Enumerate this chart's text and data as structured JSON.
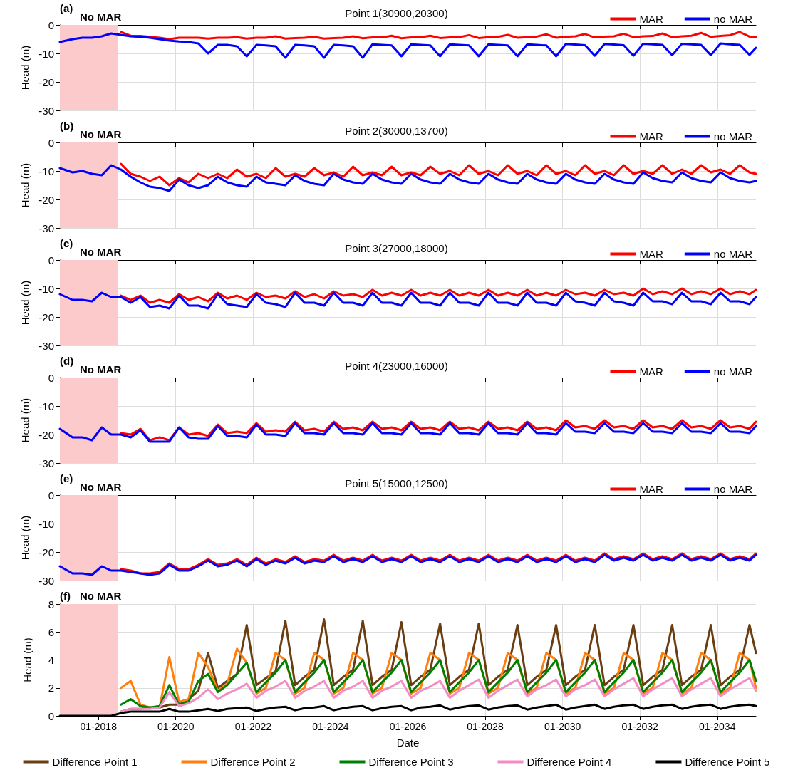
{
  "chart_data": [
    {
      "type": "line",
      "title": "Point 1(30900,20300)",
      "ylabel": "Head (m)",
      "annotations": [
        "(a)"
      ],
      "grid": true,
      "legend": "top right",
      "tick_labels": "y",
      "marker": "none",
      "xlim": [
        "2017-01",
        "2035-01"
      ],
      "xticks": [
        {
          "value": "2018-01",
          "label": null
        },
        {
          "value": "2020-01",
          "label": null
        },
        {
          "value": "2022-01",
          "label": null
        },
        {
          "value": "2024-01",
          "label": null
        },
        {
          "value": "2026-01",
          "label": null
        },
        {
          "value": "2028-01",
          "label": null
        },
        {
          "value": "2030-01",
          "label": null
        },
        {
          "value": "2032-01",
          "label": null
        },
        {
          "value": "2034-01",
          "label": null
        }
      ],
      "ylim": [
        -30,
        0
      ],
      "yticks": [
        -30,
        -20,
        -10,
        0
      ],
      "bands": [
        {
          "axis": "x",
          "from": "2017-01",
          "to": "2018-07",
          "label": "No MAR",
          "color": "#fccaca"
        }
      ],
      "x": [
        "2017-01",
        "2017-05",
        "2017-08",
        "2017-11",
        "2018-02",
        "2018-05",
        "2018-08",
        "2018-11",
        "2019-02",
        "2019-05",
        "2019-08",
        "2019-11",
        "2020-02",
        "2020-05",
        "2020-08",
        "2020-11",
        "2021-02",
        "2021-05",
        "2021-08",
        "2021-11",
        "2022-02",
        "2022-05",
        "2022-08",
        "2022-11",
        "2023-02",
        "2023-05",
        "2023-08",
        "2023-11",
        "2024-02",
        "2024-05",
        "2024-08",
        "2024-11",
        "2025-02",
        "2025-05",
        "2025-08",
        "2025-11",
        "2026-02",
        "2026-05",
        "2026-08",
        "2026-11",
        "2027-02",
        "2027-05",
        "2027-08",
        "2027-11",
        "2028-02",
        "2028-05",
        "2028-08",
        "2028-11",
        "2029-02",
        "2029-05",
        "2029-08",
        "2029-11",
        "2030-02",
        "2030-05",
        "2030-08",
        "2030-11",
        "2031-02",
        "2031-05",
        "2031-08",
        "2031-11",
        "2032-02",
        "2032-05",
        "2032-08",
        "2032-11",
        "2033-02",
        "2033-05",
        "2033-08",
        "2033-11",
        "2034-02",
        "2034-05",
        "2034-08",
        "2034-11",
        "2035-01"
      ],
      "series": [
        {
          "name": "MAR",
          "color": "#ff0000",
          "values": [
            null,
            null,
            null,
            null,
            null,
            null,
            -2.5,
            -3.8,
            -3.9,
            -4.2,
            -4.5,
            -5,
            -4.5,
            -4.5,
            -4.5,
            -4.8,
            -4.5,
            -4.5,
            -4.3,
            -4.8,
            -4.5,
            -4.5,
            -4,
            -4.8,
            -4.6,
            -4.5,
            -4.2,
            -4.8,
            -4.6,
            -4.5,
            -4,
            -4.7,
            -4.4,
            -4.4,
            -3.8,
            -4.7,
            -4.4,
            -4.3,
            -3.8,
            -4.6,
            -4.4,
            -4.3,
            -3.6,
            -4.6,
            -4.3,
            -4.2,
            -3.5,
            -4.5,
            -4.3,
            -4.1,
            -3.3,
            -4.5,
            -4.2,
            -4,
            -3.2,
            -4.4,
            -4.1,
            -4,
            -3.1,
            -4.3,
            -4,
            -3.9,
            -3,
            -4.3,
            -4,
            -3.8,
            -2.8,
            -4.2,
            -3.9,
            -3.6,
            -2.5,
            -4.1,
            -4.3
          ]
        },
        {
          "name": "no MAR",
          "color": "#0000ff",
          "values": [
            -6,
            -5,
            -4.5,
            -4.5,
            -4,
            -3,
            -3.5,
            -4,
            -4.2,
            -4.5,
            -5,
            -5.5,
            -5.8,
            -6,
            -6.5,
            -10,
            -7,
            -7,
            -7.5,
            -11,
            -7,
            -7.2,
            -7.5,
            -11.5,
            -7,
            -7.2,
            -7.5,
            -11.5,
            -7,
            -7.2,
            -7.5,
            -11.5,
            -6.8,
            -7,
            -7.2,
            -11,
            -6.8,
            -7,
            -7.2,
            -11,
            -6.8,
            -7,
            -7.2,
            -11,
            -6.8,
            -7,
            -7.2,
            -11,
            -6.8,
            -7,
            -7.2,
            -11,
            -6.7,
            -6.9,
            -7.1,
            -10.8,
            -6.7,
            -6.9,
            -7.1,
            -10.8,
            -6.6,
            -6.8,
            -7,
            -10.6,
            -6.6,
            -6.8,
            -7,
            -10.6,
            -6.5,
            -6.8,
            -7,
            -10.5,
            -8
          ]
        }
      ]
    },
    {
      "type": "line",
      "title": "Point 2(30000,13700)",
      "ylabel": "Head (m)",
      "annotations": [
        "(b)"
      ],
      "grid": true,
      "legend": "top right",
      "tick_labels": "y",
      "marker": "none",
      "xlim": [
        "2017-01",
        "2035-01"
      ],
      "xticks": [
        {
          "value": "2018-01",
          "label": null
        },
        {
          "value": "2020-01",
          "label": null
        },
        {
          "value": "2022-01",
          "label": null
        },
        {
          "value": "2024-01",
          "label": null
        },
        {
          "value": "2026-01",
          "label": null
        },
        {
          "value": "2028-01",
          "label": null
        },
        {
          "value": "2030-01",
          "label": null
        },
        {
          "value": "2032-01",
          "label": null
        },
        {
          "value": "2034-01",
          "label": null
        }
      ],
      "ylim": [
        -30,
        0
      ],
      "yticks": [
        -30,
        -20,
        -10,
        0
      ],
      "bands": [
        {
          "axis": "x",
          "from": "2017-01",
          "to": "2018-07",
          "label": "No MAR",
          "color": "#fccaca"
        }
      ],
      "x": [
        "2017-01",
        "2017-05",
        "2017-08",
        "2017-11",
        "2018-02",
        "2018-05",
        "2018-08",
        "2018-11",
        "2019-02",
        "2019-05",
        "2019-08",
        "2019-11",
        "2020-02",
        "2020-05",
        "2020-08",
        "2020-11",
        "2021-02",
        "2021-05",
        "2021-08",
        "2021-11",
        "2022-02",
        "2022-05",
        "2022-08",
        "2022-11",
        "2023-02",
        "2023-05",
        "2023-08",
        "2023-11",
        "2024-02",
        "2024-05",
        "2024-08",
        "2024-11",
        "2025-02",
        "2025-05",
        "2025-08",
        "2025-11",
        "2026-02",
        "2026-05",
        "2026-08",
        "2026-11",
        "2027-02",
        "2027-05",
        "2027-08",
        "2027-11",
        "2028-02",
        "2028-05",
        "2028-08",
        "2028-11",
        "2029-02",
        "2029-05",
        "2029-08",
        "2029-11",
        "2030-02",
        "2030-05",
        "2030-08",
        "2030-11",
        "2031-02",
        "2031-05",
        "2031-08",
        "2031-11",
        "2032-02",
        "2032-05",
        "2032-08",
        "2032-11",
        "2033-02",
        "2033-05",
        "2033-08",
        "2033-11",
        "2034-02",
        "2034-05",
        "2034-08",
        "2034-11",
        "2035-01"
      ],
      "series": [
        {
          "name": "MAR",
          "color": "#ff0000",
          "values": [
            null,
            null,
            null,
            null,
            null,
            null,
            -7.5,
            -11,
            -12,
            -13.5,
            -12,
            -15,
            -12.5,
            -14,
            -11,
            -12.5,
            -11,
            -12.5,
            -9.5,
            -12,
            -11,
            -12.5,
            -9,
            -12,
            -11,
            -12,
            -9,
            -11.5,
            -10.5,
            -12,
            -8.5,
            -11.5,
            -10.5,
            -11.5,
            -8.5,
            -11.5,
            -10.5,
            -11.5,
            -8.5,
            -11,
            -10,
            -11.5,
            -8,
            -11,
            -10,
            -11.5,
            -8,
            -11,
            -10,
            -11.5,
            -8,
            -11,
            -10,
            -11.5,
            -8,
            -11,
            -10,
            -11.5,
            -8,
            -11,
            -10,
            -11,
            -8,
            -11,
            -9.5,
            -11,
            -8,
            -10.5,
            -9.5,
            -11,
            -8,
            -10.5,
            -11
          ]
        },
        {
          "name": "no MAR",
          "color": "#0000ff",
          "values": [
            -9,
            -10.5,
            -10,
            -11,
            -11.5,
            -8,
            -9.5,
            -12,
            -14,
            -15.5,
            -16,
            -17,
            -13,
            -15,
            -16,
            -15,
            -12,
            -14,
            -15,
            -15.5,
            -12,
            -14,
            -14.5,
            -15,
            -11.5,
            -13.5,
            -14.5,
            -15,
            -11,
            -13,
            -14,
            -14.5,
            -11,
            -13,
            -14,
            -14.5,
            -11,
            -13,
            -14,
            -14.5,
            -11,
            -13,
            -14,
            -14.5,
            -11,
            -13,
            -14,
            -14.5,
            -11,
            -13,
            -14,
            -14.5,
            -11,
            -13,
            -14,
            -14.5,
            -11,
            -13,
            -14,
            -14.5,
            -10.5,
            -12.5,
            -13.5,
            -14,
            -10.5,
            -12.5,
            -13.5,
            -14,
            -10.5,
            -12.5,
            -13.5,
            -14,
            -13.5
          ]
        }
      ]
    },
    {
      "type": "line",
      "title": "Point 3(27000,18000)",
      "ylabel": "Head (m)",
      "annotations": [
        "(c)"
      ],
      "grid": true,
      "legend": "top right",
      "tick_labels": "y",
      "marker": "none",
      "xlim": [
        "2017-01",
        "2035-01"
      ],
      "xticks": [
        {
          "value": "2018-01",
          "label": null
        },
        {
          "value": "2020-01",
          "label": null
        },
        {
          "value": "2022-01",
          "label": null
        },
        {
          "value": "2024-01",
          "label": null
        },
        {
          "value": "2026-01",
          "label": null
        },
        {
          "value": "2028-01",
          "label": null
        },
        {
          "value": "2030-01",
          "label": null
        },
        {
          "value": "2032-01",
          "label": null
        },
        {
          "value": "2034-01",
          "label": null
        }
      ],
      "ylim": [
        -30,
        0
      ],
      "yticks": [
        -30,
        -20,
        -10,
        0
      ],
      "bands": [
        {
          "axis": "x",
          "from": "2017-01",
          "to": "2018-07",
          "label": "No MAR",
          "color": "#fccaca"
        }
      ],
      "x": [
        "2017-01",
        "2017-05",
        "2017-08",
        "2017-11",
        "2018-02",
        "2018-05",
        "2018-08",
        "2018-11",
        "2019-02",
        "2019-05",
        "2019-08",
        "2019-11",
        "2020-02",
        "2020-05",
        "2020-08",
        "2020-11",
        "2021-02",
        "2021-05",
        "2021-08",
        "2021-11",
        "2022-02",
        "2022-05",
        "2022-08",
        "2022-11",
        "2023-02",
        "2023-05",
        "2023-08",
        "2023-11",
        "2024-02",
        "2024-05",
        "2024-08",
        "2024-11",
        "2025-02",
        "2025-05",
        "2025-08",
        "2025-11",
        "2026-02",
        "2026-05",
        "2026-08",
        "2026-11",
        "2027-02",
        "2027-05",
        "2027-08",
        "2027-11",
        "2028-02",
        "2028-05",
        "2028-08",
        "2028-11",
        "2029-02",
        "2029-05",
        "2029-08",
        "2029-11",
        "2030-02",
        "2030-05",
        "2030-08",
        "2030-11",
        "2031-02",
        "2031-05",
        "2031-08",
        "2031-11",
        "2032-02",
        "2032-05",
        "2032-08",
        "2032-11",
        "2033-02",
        "2033-05",
        "2033-08",
        "2033-11",
        "2034-02",
        "2034-05",
        "2034-08",
        "2034-11",
        "2035-01"
      ],
      "series": [
        {
          "name": "MAR",
          "color": "#ff0000",
          "values": [
            null,
            null,
            null,
            null,
            null,
            null,
            -12.5,
            -14,
            -12.5,
            -15,
            -14,
            -15,
            -12,
            -14,
            -13,
            -14.5,
            -11.5,
            -13.5,
            -12.5,
            -14,
            -11.5,
            -13,
            -12.5,
            -13.5,
            -11,
            -13,
            -12,
            -13.5,
            -11,
            -12.5,
            -12,
            -13,
            -10.5,
            -12.5,
            -11.5,
            -12.5,
            -10.5,
            -12.5,
            -11.5,
            -12.5,
            -10.5,
            -12.5,
            -11.5,
            -12.5,
            -10.5,
            -12.5,
            -11.5,
            -12.5,
            -10.5,
            -12.5,
            -11.5,
            -12.5,
            -10.5,
            -12,
            -11.5,
            -12.5,
            -10.5,
            -12,
            -11.5,
            -12.5,
            -10,
            -12,
            -11,
            -12,
            -10,
            -12,
            -11,
            -12,
            -10,
            -12,
            -11,
            -12,
            -10.5
          ]
        },
        {
          "name": "no MAR",
          "color": "#0000ff",
          "values": [
            -12,
            -14,
            -14,
            -14.5,
            -11.5,
            -13,
            -13,
            -15,
            -13,
            -16.5,
            -16,
            -17,
            -12.5,
            -16,
            -16,
            -17,
            -12,
            -15.5,
            -16,
            -16.5,
            -12,
            -15,
            -15.5,
            -16.5,
            -11.5,
            -15,
            -15,
            -16,
            -11.5,
            -15,
            -15,
            -16,
            -11.5,
            -15,
            -15,
            -16,
            -11.5,
            -15,
            -15,
            -16,
            -11.5,
            -15,
            -15,
            -16,
            -11.5,
            -15,
            -15,
            -16,
            -11.5,
            -15,
            -15,
            -16,
            -11.5,
            -14.5,
            -15,
            -16,
            -11.5,
            -14.5,
            -15,
            -16,
            -11.5,
            -14.5,
            -14.5,
            -15.5,
            -11.5,
            -14.5,
            -14.5,
            -15.5,
            -11.5,
            -14.5,
            -14.5,
            -15.5,
            -13
          ]
        }
      ]
    },
    {
      "type": "line",
      "title": "Point 4(23000,16000)",
      "ylabel": "Head (m)",
      "annotations": [
        "(d)"
      ],
      "grid": true,
      "legend": "top right",
      "tick_labels": "y",
      "marker": "none",
      "xlim": [
        "2017-01",
        "2035-01"
      ],
      "xticks": [
        {
          "value": "2018-01",
          "label": null
        },
        {
          "value": "2020-01",
          "label": null
        },
        {
          "value": "2022-01",
          "label": null
        },
        {
          "value": "2024-01",
          "label": null
        },
        {
          "value": "2026-01",
          "label": null
        },
        {
          "value": "2028-01",
          "label": null
        },
        {
          "value": "2030-01",
          "label": null
        },
        {
          "value": "2032-01",
          "label": null
        },
        {
          "value": "2034-01",
          "label": null
        }
      ],
      "ylim": [
        -30,
        0
      ],
      "yticks": [
        -30,
        -20,
        -10,
        0
      ],
      "bands": [
        {
          "axis": "x",
          "from": "2017-01",
          "to": "2018-07",
          "label": "No MAR",
          "color": "#fccaca"
        }
      ],
      "x": [
        "2017-01",
        "2017-05",
        "2017-08",
        "2017-11",
        "2018-02",
        "2018-05",
        "2018-08",
        "2018-11",
        "2019-02",
        "2019-05",
        "2019-08",
        "2019-11",
        "2020-02",
        "2020-05",
        "2020-08",
        "2020-11",
        "2021-02",
        "2021-05",
        "2021-08",
        "2021-11",
        "2022-02",
        "2022-05",
        "2022-08",
        "2022-11",
        "2023-02",
        "2023-05",
        "2023-08",
        "2023-11",
        "2024-02",
        "2024-05",
        "2024-08",
        "2024-11",
        "2025-02",
        "2025-05",
        "2025-08",
        "2025-11",
        "2026-02",
        "2026-05",
        "2026-08",
        "2026-11",
        "2027-02",
        "2027-05",
        "2027-08",
        "2027-11",
        "2028-02",
        "2028-05",
        "2028-08",
        "2028-11",
        "2029-02",
        "2029-05",
        "2029-08",
        "2029-11",
        "2030-02",
        "2030-05",
        "2030-08",
        "2030-11",
        "2031-02",
        "2031-05",
        "2031-08",
        "2031-11",
        "2032-02",
        "2032-05",
        "2032-08",
        "2032-11",
        "2033-02",
        "2033-05",
        "2033-08",
        "2033-11",
        "2034-02",
        "2034-05",
        "2034-08",
        "2034-11",
        "2035-01"
      ],
      "series": [
        {
          "name": "MAR",
          "color": "#ff0000",
          "values": [
            null,
            null,
            null,
            null,
            null,
            null,
            -19.5,
            -20,
            -18,
            -22,
            -21,
            -22,
            -17.5,
            -20,
            -19.5,
            -20.5,
            -16.5,
            -19.5,
            -19,
            -19.5,
            -16,
            -19,
            -18.5,
            -19,
            -15.5,
            -18.5,
            -18,
            -19,
            -15.5,
            -18,
            -17.5,
            -18.5,
            -15.5,
            -18,
            -17.5,
            -18.5,
            -15.5,
            -18,
            -17.5,
            -18.5,
            -15.5,
            -18,
            -17.5,
            -18.5,
            -15.5,
            -18,
            -17.5,
            -18.5,
            -15.5,
            -18,
            -17.5,
            -18.5,
            -15,
            -17.5,
            -17,
            -18,
            -15,
            -17.5,
            -17,
            -18,
            -15,
            -17.5,
            -17,
            -18,
            -15,
            -17.5,
            -17,
            -18,
            -15,
            -17.5,
            -17,
            -18,
            -15.5
          ]
        },
        {
          "name": "no MAR",
          "color": "#0000ff",
          "values": [
            -18,
            -21,
            -21,
            -22,
            -17.5,
            -20,
            -20,
            -21,
            -18.5,
            -22.5,
            -22.5,
            -22.5,
            -17.5,
            -21,
            -21.5,
            -21.5,
            -17,
            -20.5,
            -20.5,
            -21,
            -16.5,
            -20,
            -20,
            -20.5,
            -16,
            -19.5,
            -19.5,
            -20,
            -16,
            -19.5,
            -19.5,
            -20,
            -16,
            -19.5,
            -19.5,
            -20,
            -16,
            -19.5,
            -19.5,
            -20,
            -16,
            -19.5,
            -19.5,
            -20,
            -16,
            -19.5,
            -19.5,
            -20,
            -16,
            -19.5,
            -19.5,
            -20,
            -16,
            -19,
            -19,
            -19.5,
            -16,
            -19,
            -19,
            -19.5,
            -16,
            -19,
            -19,
            -19.5,
            -16,
            -19,
            -19,
            -19.5,
            -16,
            -19,
            -19,
            -19.5,
            -17
          ]
        }
      ]
    },
    {
      "type": "line",
      "title": "Point 5(15000,12500)",
      "ylabel": "Head (m)",
      "annotations": [
        "(e)"
      ],
      "grid": true,
      "legend": "top right",
      "tick_labels": "y",
      "marker": "none",
      "xlim": [
        "2017-01",
        "2035-01"
      ],
      "xticks": [
        {
          "value": "2018-01",
          "label": null
        },
        {
          "value": "2020-01",
          "label": null
        },
        {
          "value": "2022-01",
          "label": null
        },
        {
          "value": "2024-01",
          "label": null
        },
        {
          "value": "2026-01",
          "label": null
        },
        {
          "value": "2028-01",
          "label": null
        },
        {
          "value": "2030-01",
          "label": null
        },
        {
          "value": "2032-01",
          "label": null
        },
        {
          "value": "2034-01",
          "label": null
        }
      ],
      "ylim": [
        -30,
        0
      ],
      "yticks": [
        -30,
        -20,
        -10,
        0
      ],
      "bands": [
        {
          "axis": "x",
          "from": "2017-01",
          "to": "2018-07",
          "label": "No MAR",
          "color": "#fccaca"
        }
      ],
      "x": [
        "2017-01",
        "2017-05",
        "2017-08",
        "2017-11",
        "2018-02",
        "2018-05",
        "2018-08",
        "2018-11",
        "2019-02",
        "2019-05",
        "2019-08",
        "2019-11",
        "2020-02",
        "2020-05",
        "2020-08",
        "2020-11",
        "2021-02",
        "2021-05",
        "2021-08",
        "2021-11",
        "2022-02",
        "2022-05",
        "2022-08",
        "2022-11",
        "2023-02",
        "2023-05",
        "2023-08",
        "2023-11",
        "2024-02",
        "2024-05",
        "2024-08",
        "2024-11",
        "2025-02",
        "2025-05",
        "2025-08",
        "2025-11",
        "2026-02",
        "2026-05",
        "2026-08",
        "2026-11",
        "2027-02",
        "2027-05",
        "2027-08",
        "2027-11",
        "2028-02",
        "2028-05",
        "2028-08",
        "2028-11",
        "2029-02",
        "2029-05",
        "2029-08",
        "2029-11",
        "2030-02",
        "2030-05",
        "2030-08",
        "2030-11",
        "2031-02",
        "2031-05",
        "2031-08",
        "2031-11",
        "2032-02",
        "2032-05",
        "2032-08",
        "2032-11",
        "2033-02",
        "2033-05",
        "2033-08",
        "2033-11",
        "2034-02",
        "2034-05",
        "2034-08",
        "2034-11",
        "2035-01"
      ],
      "series": [
        {
          "name": "MAR",
          "color": "#ff0000",
          "values": [
            null,
            null,
            null,
            null,
            null,
            null,
            -26,
            -26.5,
            -27.5,
            -27.5,
            -27,
            -24,
            -26,
            -26,
            -24.5,
            -22.5,
            -24.5,
            -24,
            -22.5,
            -24.5,
            -22,
            -24,
            -22.5,
            -23.5,
            -21.5,
            -23.5,
            -22.5,
            -23,
            -21,
            -23,
            -22,
            -23,
            -21,
            -23,
            -22,
            -23,
            -21,
            -23,
            -22,
            -23,
            -21,
            -23,
            -22,
            -23,
            -21,
            -23,
            -22,
            -23,
            -21,
            -23,
            -22,
            -23,
            -21,
            -23,
            -22,
            -23,
            -20.5,
            -22.5,
            -21.5,
            -22.5,
            -20.5,
            -22.5,
            -21.5,
            -22.5,
            -20.5,
            -22.5,
            -21.5,
            -22.5,
            -20.5,
            -22.5,
            -21.5,
            -22.5,
            -20.5
          ]
        },
        {
          "name": "no MAR",
          "color": "#0000ff",
          "values": [
            -25,
            -27.5,
            -27.5,
            -28,
            -25,
            -26.5,
            -26.5,
            -27,
            -27.5,
            -28,
            -27.5,
            -24.5,
            -26.5,
            -26.5,
            -25,
            -23,
            -25,
            -24.5,
            -23,
            -25,
            -22.5,
            -24.5,
            -23,
            -24,
            -22,
            -24,
            -23,
            -23.5,
            -21.5,
            -23.5,
            -22.5,
            -23.5,
            -21.5,
            -23.5,
            -22.5,
            -23.5,
            -21.5,
            -23.5,
            -22.5,
            -23.5,
            -21.5,
            -23.5,
            -22.5,
            -23.5,
            -21.5,
            -23.5,
            -22.5,
            -23.5,
            -21.5,
            -23.5,
            -22.5,
            -23.5,
            -21.5,
            -23.5,
            -22.5,
            -23.5,
            -21,
            -23,
            -22,
            -23,
            -21,
            -23,
            -22,
            -23,
            -21,
            -23,
            -22,
            -23,
            -21,
            -23,
            -22,
            -23,
            -21
          ]
        }
      ]
    },
    {
      "type": "line",
      "xlabel": "Date",
      "ylabel": "Head (m)",
      "annotations": [
        "(f)"
      ],
      "grid": true,
      "legend": "bottom",
      "marker": "none",
      "xlim": [
        "2017-01",
        "2035-01"
      ],
      "xticks": [
        {
          "value": "2018-01",
          "label": "01-2018"
        },
        {
          "value": "2020-01",
          "label": "01-2020"
        },
        {
          "value": "2022-01",
          "label": "01-2022"
        },
        {
          "value": "2024-01",
          "label": "01-2024"
        },
        {
          "value": "2026-01",
          "label": "01-2026"
        },
        {
          "value": "2028-01",
          "label": "01-2028"
        },
        {
          "value": "2030-01",
          "label": "01-2030"
        },
        {
          "value": "2032-01",
          "label": "01-2032"
        },
        {
          "value": "2034-01",
          "label": "01-2034"
        }
      ],
      "ylim": [
        0,
        8
      ],
      "yticks": [
        0,
        2,
        4,
        6,
        8
      ],
      "bands": [
        {
          "axis": "x",
          "from": "2017-01",
          "to": "2018-07",
          "label": "No MAR",
          "color": "#fccaca"
        }
      ],
      "x": [
        "2017-01",
        "2017-05",
        "2017-08",
        "2017-11",
        "2018-02",
        "2018-05",
        "2018-08",
        "2018-11",
        "2019-02",
        "2019-05",
        "2019-08",
        "2019-11",
        "2020-02",
        "2020-05",
        "2020-08",
        "2020-11",
        "2021-02",
        "2021-05",
        "2021-08",
        "2021-11",
        "2022-02",
        "2022-05",
        "2022-08",
        "2022-11",
        "2023-02",
        "2023-05",
        "2023-08",
        "2023-11",
        "2024-02",
        "2024-05",
        "2024-08",
        "2024-11",
        "2025-02",
        "2025-05",
        "2025-08",
        "2025-11",
        "2026-02",
        "2026-05",
        "2026-08",
        "2026-11",
        "2027-02",
        "2027-05",
        "2027-08",
        "2027-11",
        "2028-02",
        "2028-05",
        "2028-08",
        "2028-11",
        "2029-02",
        "2029-05",
        "2029-08",
        "2029-11",
        "2030-02",
        "2030-05",
        "2030-08",
        "2030-11",
        "2031-02",
        "2031-05",
        "2031-08",
        "2031-11",
        "2032-02",
        "2032-05",
        "2032-08",
        "2032-11",
        "2033-02",
        "2033-05",
        "2033-08",
        "2033-11",
        "2034-02",
        "2034-05",
        "2034-08",
        "2034-11",
        "2035-01"
      ],
      "series": [
        {
          "name": "Difference Point 1",
          "color": "#6b3e12",
          "values": [
            null,
            null,
            null,
            null,
            null,
            null,
            0.3,
            0.5,
            0.5,
            0.6,
            0.6,
            0.8,
            0.8,
            1.2,
            1.8,
            4.5,
            2,
            2.5,
            3,
            6.5,
            2.2,
            2.7,
            3.2,
            6.8,
            2.2,
            2.8,
            3.3,
            6.9,
            2.2,
            2.8,
            3.3,
            6.8,
            2.2,
            2.8,
            3.3,
            6.7,
            2.2,
            2.8,
            3.3,
            6.6,
            2.2,
            2.8,
            3.3,
            6.6,
            2.2,
            2.8,
            3.3,
            6.5,
            2.2,
            2.8,
            3.3,
            6.5,
            2.2,
            2.8,
            3.3,
            6.5,
            2.2,
            2.8,
            3.3,
            6.5,
            2.2,
            2.8,
            3.3,
            6.5,
            2.2,
            2.8,
            3.3,
            6.5,
            2.2,
            2.8,
            3.3,
            6.5,
            4.5
          ]
        },
        {
          "name": "Difference Point 2",
          "color": "#ff7f0e",
          "values": [
            null,
            null,
            null,
            null,
            null,
            null,
            2,
            2.5,
            0.8,
            0.6,
            0.6,
            4.2,
            1,
            1.2,
            4.5,
            3.5,
            1.8,
            2.3,
            4.8,
            3.8,
            1.6,
            2,
            4.5,
            4,
            1.6,
            2,
            4.5,
            4,
            1.6,
            2,
            4.5,
            4,
            1.6,
            2,
            4.5,
            4,
            1.6,
            2,
            4.5,
            4,
            1.6,
            2,
            4.5,
            4,
            1.6,
            2,
            4.5,
            4,
            1.6,
            2,
            4.5,
            4,
            1.6,
            2,
            4.5,
            4,
            1.6,
            2,
            4.5,
            4,
            1.6,
            2,
            4.5,
            4,
            1.6,
            2,
            4.5,
            4,
            1.6,
            2,
            4.5,
            4,
            2
          ]
        },
        {
          "name": "Difference Point 3",
          "color": "#008000",
          "values": [
            null,
            null,
            null,
            null,
            null,
            null,
            0.8,
            1.2,
            0.7,
            0.6,
            0.7,
            2.2,
            0.8,
            1,
            2.5,
            3,
            1.7,
            2.2,
            3,
            3.8,
            1.7,
            2.4,
            3.1,
            4,
            1.7,
            2.4,
            3.1,
            4,
            1.7,
            2.4,
            3.1,
            4,
            1.7,
            2.4,
            3.1,
            4,
            1.7,
            2.4,
            3.1,
            4,
            1.7,
            2.4,
            3.1,
            4,
            1.7,
            2.4,
            3.1,
            4,
            1.7,
            2.4,
            3.1,
            4,
            1.7,
            2.4,
            3.1,
            4,
            1.7,
            2.4,
            3.1,
            4,
            1.7,
            2.4,
            3.1,
            4,
            1.7,
            2.4,
            3.1,
            4,
            1.7,
            2.4,
            3.1,
            4,
            2.5
          ]
        },
        {
          "name": "Difference Point 4",
          "color": "#f48cc4",
          "values": [
            null,
            null,
            null,
            null,
            null,
            null,
            0.3,
            0.5,
            0.5,
            0.5,
            0.6,
            1.7,
            0.7,
            0.9,
            1.3,
            1.9,
            1.2,
            1.6,
            1.9,
            2.3,
            1.3,
            1.8,
            2.1,
            2.5,
            1.3,
            1.8,
            2.1,
            2.5,
            1.3,
            1.8,
            2.1,
            2.5,
            1.3,
            1.8,
            2.1,
            2.5,
            1.3,
            1.8,
            2.1,
            2.5,
            1.3,
            1.8,
            2.2,
            2.6,
            1.3,
            1.8,
            2.2,
            2.6,
            1.4,
            1.9,
            2.2,
            2.6,
            1.4,
            1.9,
            2.2,
            2.6,
            1.4,
            1.9,
            2.3,
            2.7,
            1.4,
            1.9,
            2.3,
            2.7,
            1.4,
            1.9,
            2.3,
            2.7,
            1.4,
            1.9,
            2.3,
            2.7,
            1.8
          ]
        },
        {
          "name": "Difference Point 5",
          "color": "#000000",
          "values": [
            0,
            0,
            0,
            0,
            0,
            0,
            0.2,
            0.3,
            0.3,
            0.3,
            0.3,
            0.5,
            0.3,
            0.3,
            0.4,
            0.5,
            0.35,
            0.5,
            0.55,
            0.6,
            0.35,
            0.5,
            0.6,
            0.65,
            0.4,
            0.55,
            0.6,
            0.7,
            0.4,
            0.55,
            0.65,
            0.7,
            0.4,
            0.55,
            0.65,
            0.7,
            0.4,
            0.6,
            0.65,
            0.75,
            0.45,
            0.6,
            0.7,
            0.75,
            0.45,
            0.6,
            0.7,
            0.75,
            0.45,
            0.6,
            0.7,
            0.8,
            0.45,
            0.6,
            0.7,
            0.8,
            0.5,
            0.65,
            0.75,
            0.8,
            0.5,
            0.65,
            0.75,
            0.8,
            0.5,
            0.65,
            0.75,
            0.8,
            0.5,
            0.65,
            0.75,
            0.8,
            0.7
          ]
        }
      ]
    }
  ]
}
